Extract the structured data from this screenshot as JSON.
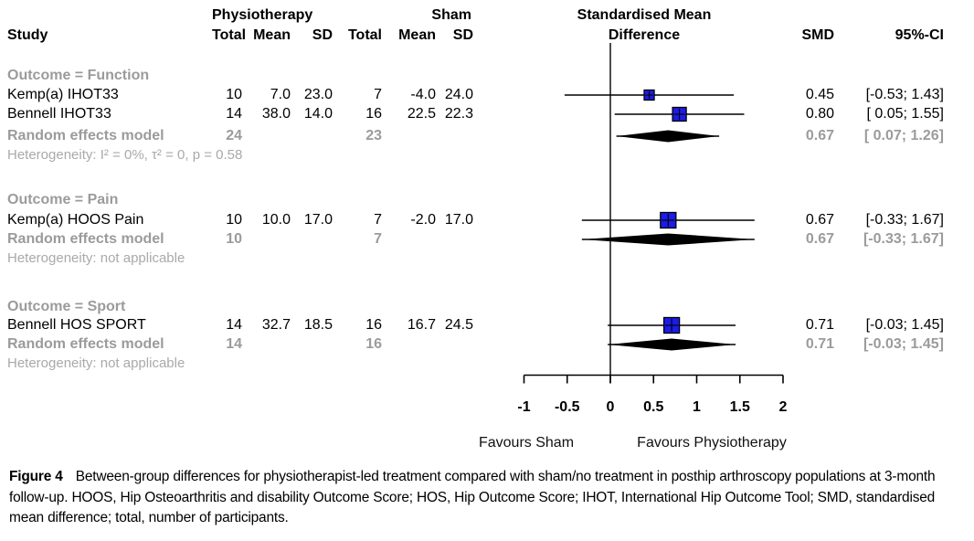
{
  "header": {
    "group1": "Physiotherapy",
    "group2": "Sham",
    "effect_line1": "Standardised Mean",
    "effect_line2": "Difference",
    "col_study": "Study",
    "col_total1": "Total",
    "col_mean1": "Mean",
    "col_sd1": "SD",
    "col_total2": "Total",
    "col_mean2": "Mean",
    "col_sd2": "SD",
    "col_smd": "SMD",
    "col_ci": "95%-CI"
  },
  "sections": [
    {
      "outcome_label": "Outcome = Function",
      "studies": [
        {
          "name": "Kemp(a) IHOT33",
          "total1": "10",
          "mean1": "7.0",
          "sd1": "23.0",
          "total2": "7",
          "mean2": "-4.0",
          "sd2": "24.0",
          "smd": "0.45",
          "ci": "[-0.53; 1.43]"
        },
        {
          "name": "Bennell IHOT33",
          "total1": "14",
          "mean1": "38.0",
          "sd1": "14.0",
          "total2": "16",
          "mean2": "22.5",
          "sd2": "22.3",
          "smd": "0.80",
          "ci": "[ 0.05; 1.55]"
        }
      ],
      "summary": {
        "name": "Random effects model",
        "total1": "24",
        "total2": "23",
        "smd": "0.67",
        "ci": "[ 0.07; 1.26]"
      },
      "heterogeneity": "Heterogeneity: I² = 0%, τ² = 0, p = 0.58"
    },
    {
      "outcome_label": "Outcome = Pain",
      "studies": [
        {
          "name": "Kemp(a) HOOS Pain",
          "total1": "10",
          "mean1": "10.0",
          "sd1": "17.0",
          "total2": "7",
          "mean2": "-2.0",
          "sd2": "17.0",
          "smd": "0.67",
          "ci": "[-0.33; 1.67]"
        }
      ],
      "summary": {
        "name": "Random effects model",
        "total1": "10",
        "total2": "7",
        "smd": "0.67",
        "ci": "[-0.33; 1.67]"
      },
      "heterogeneity": "Heterogeneity: not applicable"
    },
    {
      "outcome_label": "Outcome = Sport",
      "studies": [
        {
          "name": "Bennell HOS SPORT",
          "total1": "14",
          "mean1": "32.7",
          "sd1": "18.5",
          "total2": "16",
          "mean2": "16.7",
          "sd2": "24.5",
          "smd": "0.71",
          "ci": "[-0.03; 1.45]"
        }
      ],
      "summary": {
        "name": "Random effects model",
        "total1": "14",
        "total2": "16",
        "smd": "0.71",
        "ci": "[-0.03; 1.45]"
      },
      "heterogeneity": "Heterogeneity: not applicable"
    }
  ],
  "axis": {
    "ticks": [
      "-1",
      "-0.5",
      "0",
      "0.5",
      "1",
      "1.5",
      "2"
    ],
    "favours_left": "Favours Sham",
    "favours_right": "Favours Physiotherapy"
  },
  "caption": {
    "label": "Figure 4",
    "text": "Between-group differences for physiotherapist-led treatment compared with sham/no treatment in posthip arthroscopy populations at 3-month follow-up. HOOS, Hip Osteoarthritis and disability Outcome Score; HOS, Hip Outcome Score; IHOT, International Hip Outcome Tool; SMD, standardised mean difference; total, number of participants."
  },
  "colors": {
    "square_fill": "#1c1ce6",
    "square_border": "#000000",
    "diamond_fill": "#000000",
    "line": "#000000",
    "muted_text": "#9b9b9b",
    "het_text": "#a9a9a9"
  },
  "chart_data": {
    "type": "scatter",
    "variant": "forest-plot",
    "title": "Standardised Mean Difference",
    "xlim": [
      -1,
      2
    ],
    "x_ticks": [
      -1,
      -0.5,
      0,
      0.5,
      1,
      1.5,
      2
    ],
    "zero_line": 0,
    "xlabel_left": "Favours Sham",
    "xlabel_right": "Favours Physiotherapy",
    "groups": [
      {
        "outcome": "Function",
        "studies": [
          {
            "label": "Kemp(a) IHOT33",
            "smd": 0.45,
            "ci": [
              -0.53,
              1.43
            ],
            "n_physio": 10,
            "mean_physio": 7.0,
            "sd_physio": 23.0,
            "n_sham": 7,
            "mean_sham": -4.0,
            "sd_sham": 24.0
          },
          {
            "label": "Bennell IHOT33",
            "smd": 0.8,
            "ci": [
              0.05,
              1.55
            ],
            "n_physio": 14,
            "mean_physio": 38.0,
            "sd_physio": 14.0,
            "n_sham": 16,
            "mean_sham": 22.5,
            "sd_sham": 22.3
          }
        ],
        "summary": {
          "model": "Random effects model",
          "smd": 0.67,
          "ci": [
            0.07,
            1.26
          ],
          "n_physio": 24,
          "n_sham": 23
        },
        "heterogeneity": "I² = 0%, τ² = 0, p = 0.58"
      },
      {
        "outcome": "Pain",
        "studies": [
          {
            "label": "Kemp(a) HOOS Pain",
            "smd": 0.67,
            "ci": [
              -0.33,
              1.67
            ],
            "n_physio": 10,
            "mean_physio": 10.0,
            "sd_physio": 17.0,
            "n_sham": 7,
            "mean_sham": -2.0,
            "sd_sham": 17.0
          }
        ],
        "summary": {
          "model": "Random effects model",
          "smd": 0.67,
          "ci": [
            -0.33,
            1.67
          ],
          "n_physio": 10,
          "n_sham": 7
        },
        "heterogeneity": "not applicable"
      },
      {
        "outcome": "Sport",
        "studies": [
          {
            "label": "Bennell HOS SPORT",
            "smd": 0.71,
            "ci": [
              -0.03,
              1.45
            ],
            "n_physio": 14,
            "mean_physio": 32.7,
            "sd_physio": 18.5,
            "n_sham": 16,
            "mean_sham": 16.7,
            "sd_sham": 24.5
          }
        ],
        "summary": {
          "model": "Random effects model",
          "smd": 0.71,
          "ci": [
            -0.03,
            1.45
          ],
          "n_physio": 14,
          "n_sham": 16
        },
        "heterogeneity": "not applicable"
      }
    ]
  }
}
